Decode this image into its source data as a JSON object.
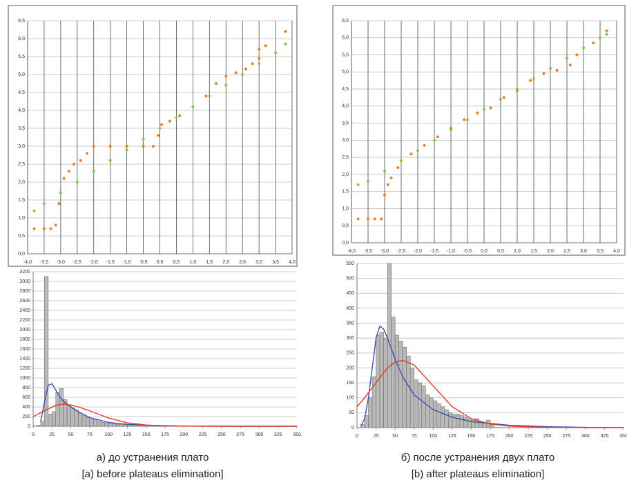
{
  "chart_data": [
    {
      "type": "scatter",
      "grid": "both",
      "xlim": [
        -4,
        4
      ],
      "ylim": [
        0,
        6.5
      ],
      "xticks": [
        {
          "value": -4,
          "label": "-4,0"
        },
        {
          "value": -3.5,
          "label": "-3,5"
        },
        {
          "value": -3,
          "label": "-3,0"
        },
        {
          "value": -2.5,
          "label": "-2,5"
        },
        {
          "value": -2,
          "label": "-2,0"
        },
        {
          "value": -1.5,
          "label": "-1,5"
        },
        {
          "value": -1,
          "label": "-1,0"
        },
        {
          "value": -0.5,
          "label": "-0,5"
        },
        {
          "value": 0,
          "label": "0,0"
        },
        {
          "value": 0.5,
          "label": "0,5"
        },
        {
          "value": 1,
          "label": "1,0"
        },
        {
          "value": 1.5,
          "label": "1,5"
        },
        {
          "value": 2,
          "label": "2,0"
        },
        {
          "value": 2.5,
          "label": "2,5"
        },
        {
          "value": 3,
          "label": "3,0"
        },
        {
          "value": 3.5,
          "label": "3,5"
        },
        {
          "value": 4,
          "label": "4,0"
        }
      ],
      "yticks": [
        {
          "value": 0,
          "label": "0,0"
        },
        {
          "value": 0.5,
          "label": "0,5"
        },
        {
          "value": 1,
          "label": "1,0"
        },
        {
          "value": 1.5,
          "label": "1,5"
        },
        {
          "value": 2,
          "label": "2,0"
        },
        {
          "value": 2.5,
          "label": "2,5"
        },
        {
          "value": 3,
          "label": "3,0"
        },
        {
          "value": 3.5,
          "label": "3,5"
        },
        {
          "value": 4,
          "label": "4,0"
        },
        {
          "value": 4.5,
          "label": "4,5"
        },
        {
          "value": 5,
          "label": "5,0"
        },
        {
          "value": 5.5,
          "label": "5,5"
        },
        {
          "value": 6,
          "label": "6,0"
        },
        {
          "value": 6.5,
          "label": "6,5"
        }
      ],
      "series": [
        {
          "color": "#f07c1c",
          "x": [
            -3.8,
            -3.5,
            -3.3,
            -3.15,
            -3.05,
            -3.0,
            -2.9,
            -2.75,
            -2.6,
            -2.4,
            -2.2,
            -2.0,
            -1.5,
            -1.0,
            -0.5,
            -0.2,
            -0.05,
            0.05,
            0.3,
            0.6,
            1.0,
            1.4,
            1.7,
            2.0,
            2.3,
            2.6,
            2.8,
            3.0,
            3.0,
            3.2,
            3.8
          ],
          "values": [
            0.7,
            0.7,
            0.7,
            0.8,
            1.4,
            1.7,
            2.1,
            2.3,
            2.5,
            2.6,
            2.8,
            3.0,
            3.0,
            3.0,
            3.0,
            3.0,
            3.3,
            3.6,
            3.7,
            3.85,
            4.1,
            4.4,
            4.75,
            4.95,
            5.05,
            5.15,
            5.3,
            5.45,
            5.7,
            5.8,
            6.2
          ]
        },
        {
          "color": "#8cc63f",
          "x": [
            -3.8,
            -3.5,
            -3.0,
            -2.5,
            -2.0,
            -1.5,
            -1.0,
            -0.5,
            0.0,
            0.5,
            1.0,
            1.5,
            2.0,
            2.5,
            3.0,
            3.5,
            3.8
          ],
          "values": [
            1.2,
            1.4,
            1.7,
            2.0,
            2.3,
            2.6,
            2.9,
            3.2,
            3.5,
            3.8,
            4.1,
            4.4,
            4.7,
            5.0,
            5.3,
            5.6,
            5.85
          ]
        }
      ]
    },
    {
      "type": "scatter",
      "grid": "both",
      "xlim": [
        -4,
        4
      ],
      "ylim": [
        0,
        6.5
      ],
      "xticks": [
        {
          "value": -4,
          "label": "-4,0"
        },
        {
          "value": -3.5,
          "label": "-3,5"
        },
        {
          "value": -3,
          "label": "-3,0"
        },
        {
          "value": -2.5,
          "label": "-2,5"
        },
        {
          "value": -2,
          "label": "-2,0"
        },
        {
          "value": -1.5,
          "label": "-1,5"
        },
        {
          "value": -1,
          "label": "-1,0"
        },
        {
          "value": -0.5,
          "label": "-0,5"
        },
        {
          "value": 0,
          "label": "0,0"
        },
        {
          "value": 0.5,
          "label": "0,5"
        },
        {
          "value": 1,
          "label": "1,0"
        },
        {
          "value": 1.5,
          "label": "1,5"
        },
        {
          "value": 2,
          "label": "2,0"
        },
        {
          "value": 2.5,
          "label": "2,5"
        },
        {
          "value": 3,
          "label": "3,0"
        },
        {
          "value": 3.5,
          "label": "3,5"
        },
        {
          "value": 4,
          "label": "4,0"
        }
      ],
      "yticks": [
        {
          "value": 0,
          "label": "0,0"
        },
        {
          "value": 0.5,
          "label": "0,5"
        },
        {
          "value": 1,
          "label": "1,0"
        },
        {
          "value": 1.5,
          "label": "1,5"
        },
        {
          "value": 2,
          "label": "2,0"
        },
        {
          "value": 2.5,
          "label": "2,5"
        },
        {
          "value": 3,
          "label": "3,0"
        },
        {
          "value": 3.5,
          "label": "3,5"
        },
        {
          "value": 4,
          "label": "4,0"
        },
        {
          "value": 4.5,
          "label": "4,5"
        },
        {
          "value": 5,
          "label": "5,0"
        },
        {
          "value": 5.5,
          "label": "5,5"
        },
        {
          "value": 6,
          "label": "6,0"
        },
        {
          "value": 6.5,
          "label": "6,5"
        }
      ],
      "series": [
        {
          "color": "#f07c1c",
          "x": [
            -3.8,
            -3.5,
            -3.3,
            -3.1,
            -3.0,
            -2.9,
            -2.8,
            -2.6,
            -2.5,
            -2.2,
            -1.8,
            -1.4,
            -1.0,
            -0.6,
            -0.2,
            0.2,
            0.6,
            1.0,
            1.4,
            1.8,
            2.2,
            2.6,
            2.8,
            3.0,
            3.3,
            3.7
          ],
          "values": [
            0.7,
            0.7,
            0.7,
            0.7,
            1.4,
            1.7,
            1.9,
            2.2,
            2.4,
            2.6,
            2.85,
            3.1,
            3.35,
            3.6,
            3.8,
            3.95,
            4.25,
            4.45,
            4.75,
            4.95,
            5.05,
            5.2,
            5.5,
            5.7,
            5.85,
            6.2
          ]
        },
        {
          "color": "#8cc63f",
          "x": [
            -3.8,
            -3.5,
            -3.0,
            -2.5,
            -2.0,
            -1.5,
            -1.0,
            -0.5,
            0.0,
            0.5,
            1.0,
            1.5,
            2.0,
            2.5,
            3.0,
            3.5,
            3.7
          ],
          "values": [
            1.7,
            1.8,
            2.1,
            2.4,
            2.7,
            3.0,
            3.3,
            3.6,
            3.9,
            4.2,
            4.5,
            4.8,
            5.1,
            5.4,
            5.7,
            6.0,
            6.1
          ]
        }
      ]
    },
    {
      "type": "histogram",
      "grid": "y",
      "bar_color": "#b9b9b9",
      "xlim": [
        0,
        350
      ],
      "ylim": [
        0,
        3200
      ],
      "xticks": [
        0,
        25,
        50,
        75,
        100,
        125,
        150,
        175,
        200,
        225,
        250,
        275,
        300,
        325,
        350
      ],
      "yticks": [
        0,
        200,
        400,
        600,
        800,
        1000,
        1200,
        1400,
        1600,
        1800,
        2000,
        2200,
        2400,
        2600,
        2800,
        3000,
        3200
      ],
      "bins": [
        5,
        10,
        15,
        20,
        25,
        30,
        35,
        40,
        45,
        50,
        55,
        60,
        65,
        70,
        75,
        80,
        85,
        90,
        95,
        100,
        105,
        110,
        115,
        120,
        125,
        130,
        135,
        140,
        145,
        150,
        155,
        160
      ],
      "values": [
        20,
        100,
        3100,
        250,
        300,
        700,
        780,
        550,
        420,
        380,
        330,
        270,
        220,
        180,
        150,
        130,
        100,
        80,
        70,
        60,
        50,
        40,
        35,
        30,
        30,
        25,
        25,
        30,
        20,
        20,
        15
      ],
      "series": [
        {
          "color": "#3b4fb5",
          "x": [
            10,
            15,
            20,
            25,
            30,
            35,
            40,
            50,
            60,
            75,
            100,
            125,
            150,
            200,
            250,
            300,
            350
          ],
          "values": [
            100,
            500,
            850,
            880,
            750,
            620,
            520,
            400,
            300,
            180,
            80,
            40,
            20,
            5,
            0,
            0,
            0
          ]
        },
        {
          "color": "#e8392b",
          "x": [
            0,
            10,
            20,
            30,
            40,
            50,
            60,
            75,
            100,
            125,
            150,
            175,
            200,
            250,
            300,
            350
          ],
          "values": [
            200,
            280,
            360,
            430,
            460,
            440,
            400,
            320,
            170,
            70,
            25,
            8,
            2,
            0,
            0,
            0
          ]
        }
      ]
    },
    {
      "type": "histogram",
      "grid": "y",
      "bar_color": "#b9b9b9",
      "xlim": [
        0,
        350
      ],
      "ylim": [
        0,
        550
      ],
      "xticks": [
        0,
        25,
        50,
        75,
        100,
        125,
        150,
        175,
        200,
        225,
        250,
        275,
        300,
        325,
        350
      ],
      "yticks": [
        0,
        50,
        100,
        150,
        200,
        250,
        300,
        350,
        400,
        450,
        500,
        550
      ],
      "bins": [
        5,
        10,
        15,
        20,
        25,
        30,
        35,
        40,
        45,
        50,
        55,
        60,
        65,
        70,
        75,
        80,
        85,
        90,
        95,
        100,
        105,
        110,
        115,
        120,
        125,
        130,
        135,
        140,
        145,
        150,
        155,
        160,
        165,
        170,
        175,
        180
      ],
      "values": [
        10,
        40,
        100,
        170,
        310,
        320,
        300,
        550,
        370,
        310,
        290,
        270,
        240,
        200,
        160,
        150,
        140,
        110,
        100,
        90,
        80,
        70,
        60,
        50,
        45,
        45,
        40,
        35,
        30,
        25,
        30,
        20,
        15,
        25,
        10
      ],
      "series": [
        {
          "color": "#3b4fb5",
          "x": [
            5,
            10,
            15,
            20,
            25,
            30,
            35,
            40,
            50,
            60,
            75,
            100,
            125,
            150,
            200,
            250,
            300,
            350
          ],
          "values": [
            5,
            30,
            100,
            200,
            300,
            340,
            330,
            300,
            230,
            170,
            110,
            60,
            35,
            20,
            8,
            3,
            1,
            0
          ]
        },
        {
          "color": "#e8392b",
          "x": [
            0,
            10,
            25,
            40,
            50,
            60,
            75,
            100,
            125,
            150,
            175,
            200,
            250,
            300,
            350
          ],
          "values": [
            70,
            100,
            150,
            200,
            220,
            225,
            210,
            140,
            70,
            30,
            12,
            5,
            1,
            0,
            0
          ]
        }
      ]
    }
  ],
  "captions": [
    {
      "ru": "а) до устранения плато",
      "en": "[a) before plateaus elimination]"
    },
    {
      "ru": "б) после устранения двух плато",
      "en": "[b) after plateaus elimination]"
    }
  ]
}
